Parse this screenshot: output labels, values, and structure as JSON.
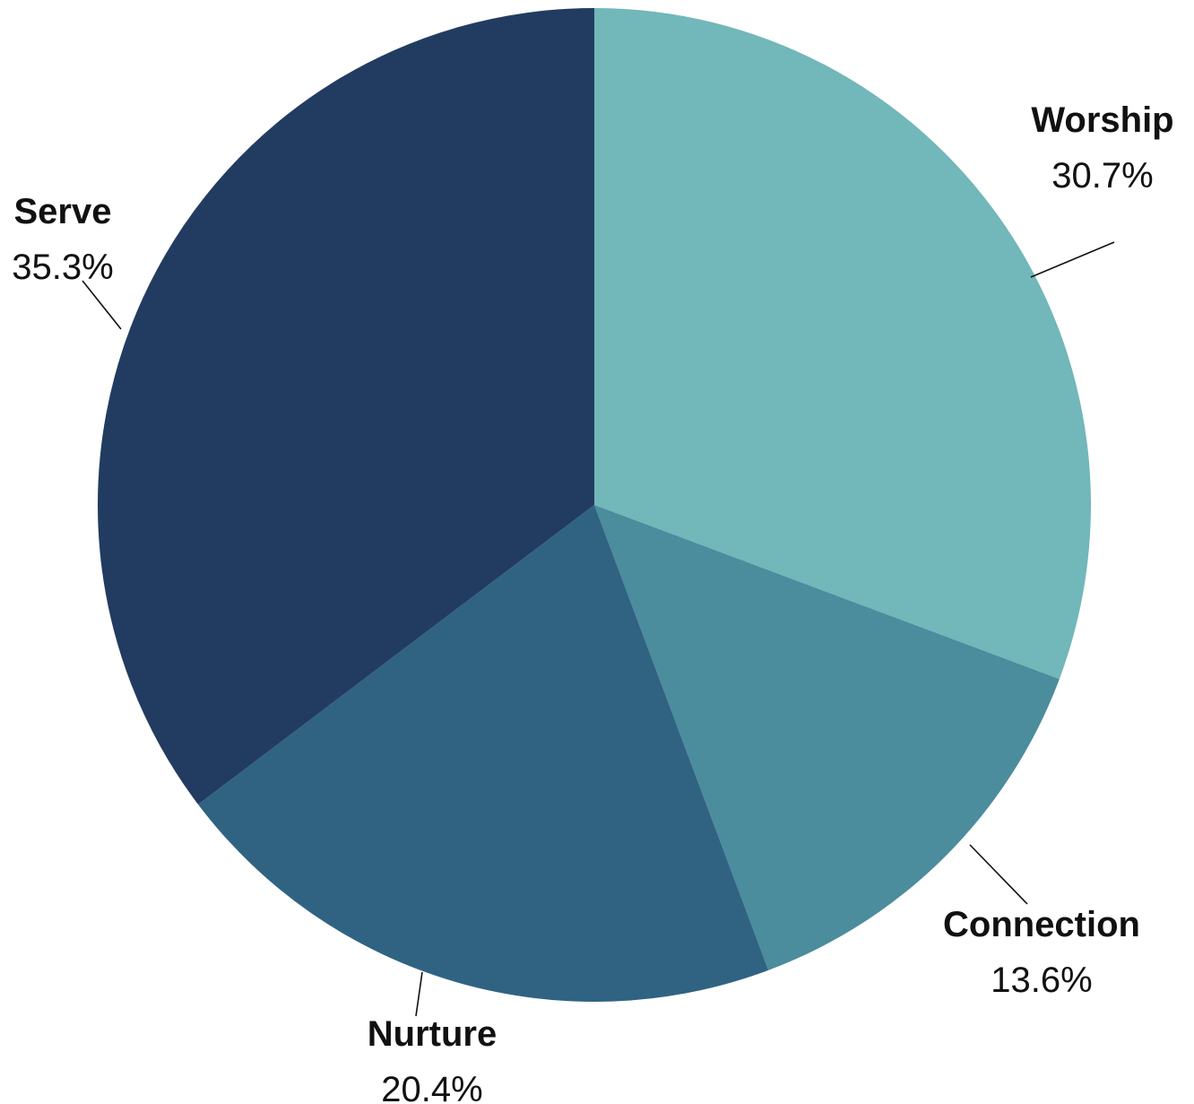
{
  "chart_data": {
    "type": "pie",
    "title": "",
    "start_angle_deg": 0,
    "direction": "clockwise",
    "slices": [
      {
        "name": "Worship",
        "value": 30.7,
        "label": "30.7%",
        "color": "#72b7b9"
      },
      {
        "name": "Connection",
        "value": 13.6,
        "label": "13.6%",
        "color": "#4b8c9d"
      },
      {
        "name": "Nurture",
        "value": 20.4,
        "label": "20.4%",
        "color": "#306382"
      },
      {
        "name": "Serve",
        "value": 35.3,
        "label": "35.3%",
        "color": "#223c61"
      }
    ],
    "legend": "none",
    "labels": "outside-with-leader-lines"
  }
}
